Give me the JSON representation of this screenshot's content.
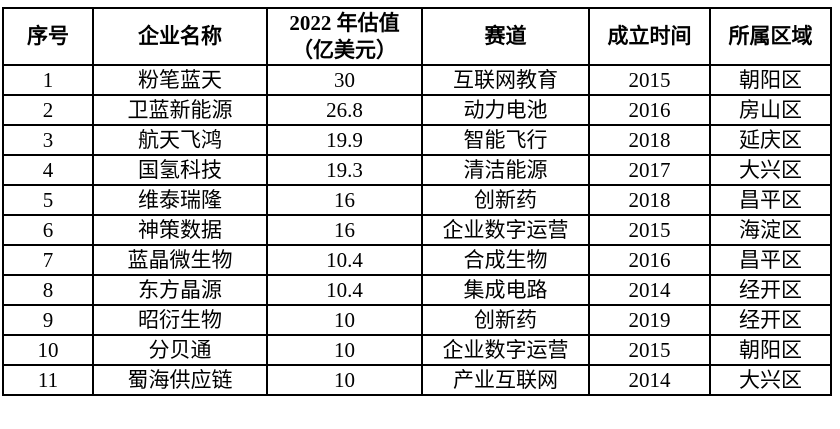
{
  "table": {
    "title": "company-valuation-table",
    "headers": [
      "序号",
      "企业名称",
      "2022 年估值\n（亿美元）",
      "赛道",
      "成立时间",
      "所属区域"
    ],
    "rows": [
      [
        "1",
        "粉笔蓝天",
        "30",
        "互联网教育",
        "2015",
        "朝阳区"
      ],
      [
        "2",
        "卫蓝新能源",
        "26.8",
        "动力电池",
        "2016",
        "房山区"
      ],
      [
        "3",
        "航天飞鸿",
        "19.9",
        "智能飞行",
        "2018",
        "延庆区"
      ],
      [
        "4",
        "国氢科技",
        "19.3",
        "清洁能源",
        "2017",
        "大兴区"
      ],
      [
        "5",
        "维泰瑞隆",
        "16",
        "创新药",
        "2018",
        "昌平区"
      ],
      [
        "6",
        "神策数据",
        "16",
        "企业数字运营",
        "2015",
        "海淀区"
      ],
      [
        "7",
        "蓝晶微生物",
        "10.4",
        "合成生物",
        "2016",
        "昌平区"
      ],
      [
        "8",
        "东方晶源",
        "10.4",
        "集成电路",
        "2014",
        "经开区"
      ],
      [
        "9",
        "昭衍生物",
        "10",
        "创新药",
        "2019",
        "经开区"
      ],
      [
        "10",
        "分贝通",
        "10",
        "企业数字运营",
        "2015",
        "朝阳区"
      ],
      [
        "11",
        "蜀海供应链",
        "10",
        "产业互联网",
        "2014",
        "大兴区"
      ]
    ],
    "colors": {
      "border": "#000000",
      "text": "#000000",
      "background": "#ffffff"
    }
  }
}
